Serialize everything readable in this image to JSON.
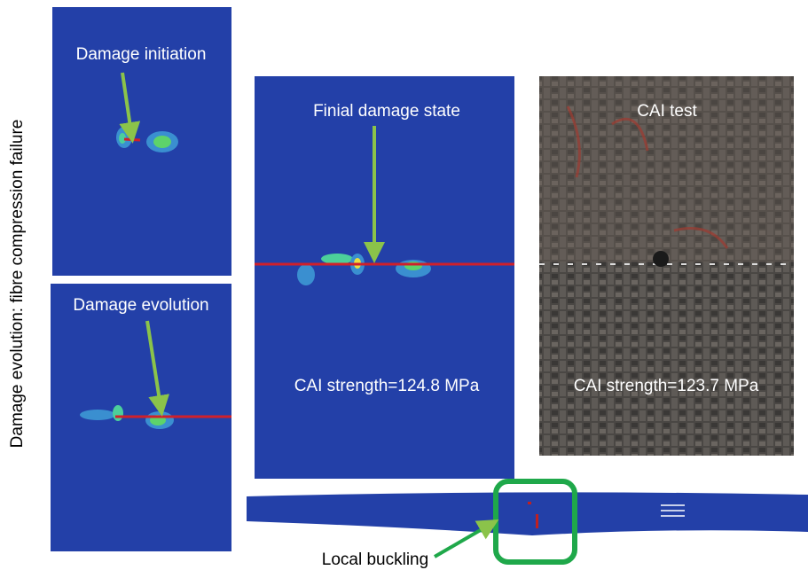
{
  "side_label": "Damage evolution: fibre compression failure",
  "panels": {
    "initiation": {
      "label": "Damage initiation"
    },
    "evolution": {
      "label": "Damage evolution"
    },
    "final": {
      "label": "Finial damage state",
      "strength": "CAI strength=124.8 MPa"
    },
    "test": {
      "label": "CAI test",
      "strength": "CAI strength=123.7 MPa"
    },
    "buckling": {
      "label": "Local buckling"
    }
  }
}
